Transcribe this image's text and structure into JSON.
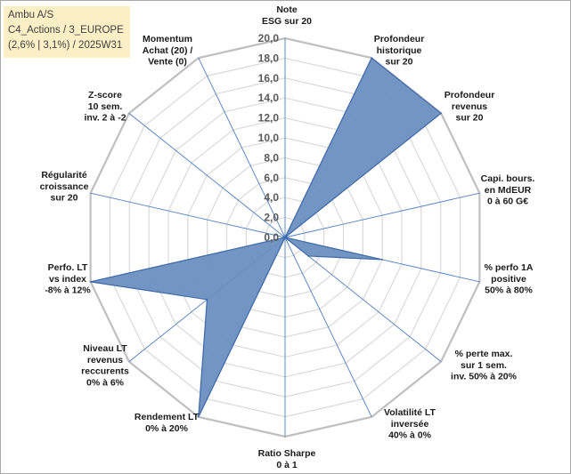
{
  "title_box": {
    "line1": "Ambu A/S",
    "line2": "C4_Actions / 3_EUROPE",
    "line3": "(2,6% | 3,1%) / 2025W31",
    "background": "#fcefc6"
  },
  "chart_data": {
    "type": "radar",
    "rmin": 0,
    "rmax": 20,
    "tick_step": 2,
    "tick_labels": [
      "0,0",
      "2,0",
      "4,0",
      "6,0",
      "8,0",
      "10,0",
      "12,0",
      "14,0",
      "16,0",
      "18,0",
      "20,0"
    ],
    "grid": true,
    "fill_color": "#6a8fc0",
    "line_color": "#3f6aa8",
    "axes": [
      {
        "label": [
          "Note",
          "ESG sur 20"
        ],
        "value": 0
      },
      {
        "label": [
          "Profondeur",
          "historique",
          "sur 20"
        ],
        "value": 20
      },
      {
        "label": [
          "Profondeur",
          "revenus",
          "sur 20"
        ],
        "value": 20
      },
      {
        "label": [
          "Capi. bours.",
          "en MdEUR",
          "0 à 60 G€"
        ],
        "value": 0
      },
      {
        "label": [
          "% perfo 1A",
          "positive",
          "50% à 80%"
        ],
        "value": 10
      },
      {
        "label": [
          "% perte max.",
          "sur 1 sem.",
          "inv. 50% à 20%"
        ],
        "value": 3
      },
      {
        "label": [
          "Volatilité LT",
          "inversée",
          "40% à 0%"
        ],
        "value": 0
      },
      {
        "label": [
          "Ratio Sharpe",
          "0 à 1"
        ],
        "value": 0
      },
      {
        "label": [
          "Rendement LT",
          "0% à 20%"
        ],
        "value": 20
      },
      {
        "label": [
          "Niveau LT",
          "revenus",
          "reccurents",
          "0% à 6%"
        ],
        "value": 10
      },
      {
        "label": [
          "Perfo. LT",
          "vs index",
          "-8% à 12%"
        ],
        "value": 20
      },
      {
        "label": [
          "Régularité",
          "croissance",
          "sur 20"
        ],
        "value": 0
      },
      {
        "label": [
          "Z-score",
          "10 sem.",
          "inv. 2 à -2"
        ],
        "value": 0
      },
      {
        "label": [
          "Momentum",
          "Achat (20) /",
          "Vente (0)"
        ],
        "value": 0
      }
    ]
  }
}
